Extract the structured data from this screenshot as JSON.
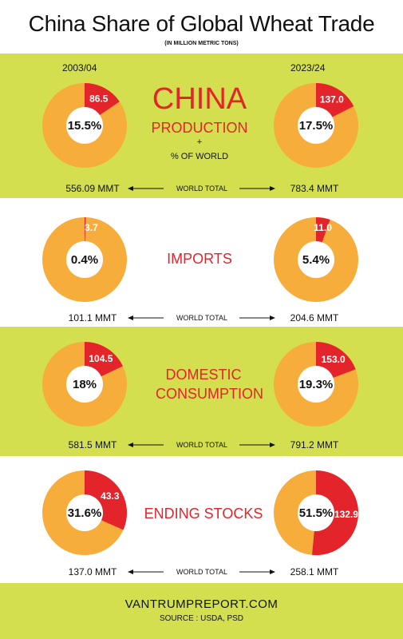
{
  "header": {
    "title": "China Share of Global Wheat Trade",
    "subtitle": "(IN MILLION METRIC TONS)",
    "year_left": "2003/04",
    "year_right": "2023/24"
  },
  "labels": {
    "china": "CHINA",
    "production": "PRODUCTION",
    "plus": "+",
    "pct_of_world": "% OF WORLD",
    "world_total": "WORLD TOTAL"
  },
  "footer": {
    "url": "VANTRUMPREPORT.COM",
    "source": "SOURCE : USDA, PSD"
  },
  "colors": {
    "green_band": "#d3df4e",
    "orange": "#f6ad3c",
    "red": "#e3242b"
  },
  "chart_data": [
    {
      "type": "pie",
      "category": "PRODUCTION",
      "year": "2003/04",
      "china_value": 86.5,
      "share_pct": 15.5,
      "china_label": "86.5",
      "share_label": "15.5%",
      "world_total": "556.09 MMT"
    },
    {
      "type": "pie",
      "category": "PRODUCTION",
      "year": "2023/24",
      "china_value": 137.0,
      "share_pct": 17.5,
      "china_label": "137.0",
      "share_label": "17.5%",
      "world_total": "783.4 MMT"
    },
    {
      "type": "pie",
      "category": "IMPORTS",
      "year": "2003/04",
      "china_value": 3.7,
      "share_pct": 0.4,
      "china_label": "3.7",
      "share_label": "0.4%",
      "world_total": "101.1 MMT"
    },
    {
      "type": "pie",
      "category": "IMPORTS",
      "year": "2023/24",
      "china_value": 11.0,
      "share_pct": 5.4,
      "china_label": "11.0",
      "share_label": "5.4%",
      "world_total": "204.6 MMT"
    },
    {
      "type": "pie",
      "category": "DOMESTIC CONSUMPTION",
      "year": "2003/04",
      "china_value": 104.5,
      "share_pct": 18,
      "china_label": "104.5",
      "share_label": "18%",
      "world_total": "581.5 MMT"
    },
    {
      "type": "pie",
      "category": "DOMESTIC CONSUMPTION",
      "year": "2023/24",
      "china_value": 153.0,
      "share_pct": 19.3,
      "china_label": "153.0",
      "share_label": "19.3%",
      "world_total": "791.2 MMT"
    },
    {
      "type": "pie",
      "category": "ENDING STOCKS",
      "year": "2003/04",
      "china_value": 43.3,
      "share_pct": 31.6,
      "china_label": "43.3",
      "share_label": "31.6%",
      "world_total": "137.0 MMT"
    },
    {
      "type": "pie",
      "category": "ENDING STOCKS",
      "year": "2023/24",
      "china_value": 132.9,
      "share_pct": 51.5,
      "china_label": "132.9",
      "share_label": "51.5%",
      "world_total": "258.1 MMT"
    }
  ]
}
